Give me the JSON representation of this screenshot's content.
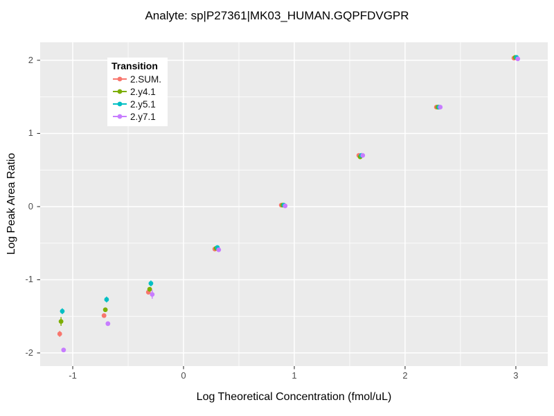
{
  "title": "Analyte: sp|P27361|MK03_HUMAN.GQPFDVGPR",
  "x_axis_title": "Log Theoretical Concentration (fmol/uL)",
  "y_axis_title": "Log Peak Area Ratio",
  "legend": {
    "title": "Transition",
    "items": [
      {
        "label": "2.SUM.",
        "color": "#F8766D"
      },
      {
        "label": "2.y4.1",
        "color": "#7CAE00"
      },
      {
        "label": "2.y5.1",
        "color": "#00BFC4"
      },
      {
        "label": "2.y7.1",
        "color": "#C77CFF"
      }
    ]
  },
  "axes": {
    "x": {
      "tick_labels": [
        "-1",
        "0",
        "1",
        "2",
        "3"
      ],
      "tick_values": [
        -1,
        0,
        1,
        2,
        3
      ],
      "minor_tick_values": [
        -0.5,
        0.5,
        1.5,
        2.5
      ]
    },
    "y": {
      "tick_labels": [
        "-2",
        "-1",
        "0",
        "1",
        "2"
      ],
      "tick_values": [
        -2,
        -1,
        0,
        1,
        2
      ],
      "minor_tick_values": [
        -1.5,
        -0.5,
        0.5,
        1.5
      ]
    }
  },
  "style": {
    "panel_bg": "#EBEBEB",
    "grid_color": "#FFFFFF",
    "tick_color": "#333333",
    "tick_label_color": "#4D4D4D",
    "text_color": "#000000"
  },
  "chart_data": {
    "type": "scatter",
    "title": "Analyte: sp|P27361|MK03_HUMAN.GQPFDVGPR",
    "xlabel": "Log Theoretical Concentration (fmol/uL)",
    "ylabel": "Log Peak Area Ratio",
    "xlim": [
      -1.294,
      3.288
    ],
    "ylim": [
      -2.18,
      2.246
    ],
    "grid": true,
    "legend_position": "top-left-inside",
    "x": [
      -1.1,
      -0.7,
      -0.3,
      0.3,
      0.9,
      1.6,
      2.3,
      3.0
    ],
    "series": [
      {
        "name": "2.SUM.",
        "color": "#F8766D",
        "values": [
          -1.74,
          -1.49,
          -1.17,
          -0.58,
          0.02,
          0.7,
          1.36,
          2.03
        ],
        "errors": [
          0.04,
          0.02,
          0.02,
          0.01,
          0.01,
          0.01,
          0.01,
          0.01
        ]
      },
      {
        "name": "2.y4.1",
        "color": "#7CAE00",
        "values": [
          -1.57,
          -1.41,
          -1.13,
          -0.57,
          0.02,
          0.68,
          1.36,
          2.04
        ],
        "errors": [
          0.06,
          0.03,
          0.02,
          0.01,
          0.01,
          0.01,
          0.01,
          0.01
        ]
      },
      {
        "name": "2.y5.1",
        "color": "#00BFC4",
        "values": [
          -1.43,
          -1.27,
          -1.05,
          -0.56,
          0.02,
          0.7,
          1.36,
          2.04
        ],
        "errors": [
          0.04,
          0.04,
          0.04,
          0.01,
          0.01,
          0.01,
          0.01,
          0.01
        ]
      },
      {
        "name": "2.y7.1",
        "color": "#C77CFF",
        "values": [
          -1.96,
          -1.6,
          -1.2,
          -0.59,
          0.01,
          0.7,
          1.36,
          2.02
        ],
        "errors": [
          0.03,
          0.02,
          0.06,
          0.01,
          0.01,
          0.01,
          0.01,
          0.01
        ]
      }
    ]
  }
}
